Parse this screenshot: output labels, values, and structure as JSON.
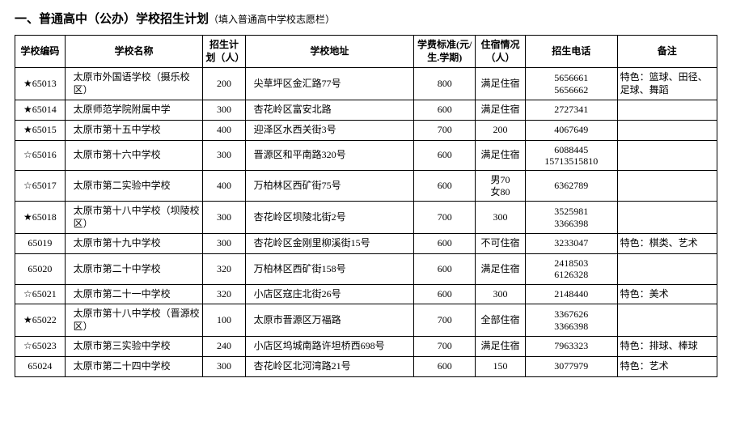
{
  "title_main": "一、普通高中（公办）学校招生计划",
  "title_sub": "（填入普通高中学校志愿栏）",
  "columns": {
    "code": "学校编码",
    "name": "学校名称",
    "plan": "招生计划（人）",
    "addr": "学校地址",
    "fee": "学费标准(元/生.学期)",
    "dorm": "住宿情况（人）",
    "tel": "招生电话",
    "note": "备注"
  },
  "rows": [
    {
      "code": "★65013",
      "name": "太原市外国语学校（摄乐校区）",
      "plan": "200",
      "addr": "尖草坪区金汇路77号",
      "fee": "800",
      "dorm": "满足住宿",
      "tel": "5656661\n5656662",
      "note": "特色：篮球、田径、足球、舞蹈"
    },
    {
      "code": "★65014",
      "name": "太原师范学院附属中学",
      "plan": "300",
      "addr": "杏花岭区富安北路",
      "fee": "600",
      "dorm": "满足住宿",
      "tel": "2727341",
      "note": ""
    },
    {
      "code": "★65015",
      "name": "太原市第十五中学校",
      "plan": "400",
      "addr": "迎泽区水西关街3号",
      "fee": "700",
      "dorm": "200",
      "tel": "4067649",
      "note": ""
    },
    {
      "code": "☆65016",
      "name": "太原市第十六中学校",
      "plan": "300",
      "addr": "晋源区和平南路320号",
      "fee": "600",
      "dorm": "满足住宿",
      "tel": "6088445\n15713515810",
      "note": ""
    },
    {
      "code": "☆65017",
      "name": "太原市第二实验中学校",
      "plan": "400",
      "addr": "万柏林区西矿街75号",
      "fee": "600",
      "dorm": "男70\n女80",
      "tel": "6362789",
      "note": ""
    },
    {
      "code": "★65018",
      "name": "太原市第十八中学校（坝陵校区）",
      "plan": "300",
      "addr": "杏花岭区坝陵北街2号",
      "fee": "700",
      "dorm": "300",
      "tel": "3525981\n3366398",
      "note": ""
    },
    {
      "code": "65019",
      "name": "太原市第十九中学校",
      "plan": "300",
      "addr": "杏花岭区金刚里柳溪街15号",
      "fee": "600",
      "dorm": "不可住宿",
      "tel": "3233047",
      "note": "特色：棋类、艺术"
    },
    {
      "code": "65020",
      "name": "太原市第二十中学校",
      "plan": "320",
      "addr": "万柏林区西矿街158号",
      "fee": "600",
      "dorm": "满足住宿",
      "tel": "2418503\n6126328",
      "note": ""
    },
    {
      "code": "☆65021",
      "name": "太原市第二十一中学校",
      "plan": "320",
      "addr": "小店区寇庄北街26号",
      "fee": "600",
      "dorm": "300",
      "tel": "2148440",
      "note": "特色：美术"
    },
    {
      "code": "★65022",
      "name": "太原市第十八中学校（晋源校区）",
      "plan": "100",
      "addr": "太原市晋源区万福路",
      "fee": "700",
      "dorm": "全部住宿",
      "tel": "3367626\n3366398",
      "note": ""
    },
    {
      "code": "☆65023",
      "name": "太原市第三实验中学校",
      "plan": "240",
      "addr": "小店区坞城南路许坦桥西698号",
      "fee": "700",
      "dorm": "满足住宿",
      "tel": "7963323",
      "note": "特色：排球、棒球"
    },
    {
      "code": "65024",
      "name": "太原市第二十四中学校",
      "plan": "300",
      "addr": "杏花岭区北河湾路21号",
      "fee": "600",
      "dorm": "150",
      "tel": "3077979",
      "note": "特色：艺术"
    }
  ]
}
